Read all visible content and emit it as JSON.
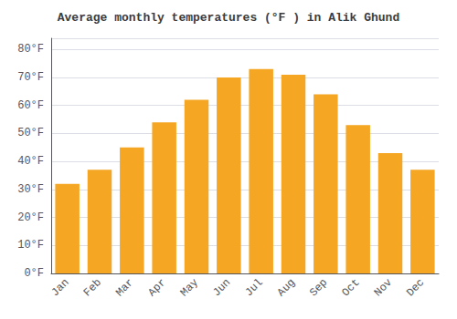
{
  "chart_data": {
    "type": "bar",
    "title": "Average monthly temperatures (°F ) in Alik Ghund",
    "categories": [
      "Jan",
      "Feb",
      "Mar",
      "Apr",
      "May",
      "Jun",
      "Jul",
      "Aug",
      "Sep",
      "Oct",
      "Nov",
      "Dec"
    ],
    "values": [
      32,
      37,
      45,
      54,
      62,
      70,
      73,
      71,
      64,
      53,
      43,
      37
    ],
    "color": "#F5A623",
    "ylim": [
      0,
      84
    ],
    "yticks": [
      {
        "value": 0,
        "label": "0°F"
      },
      {
        "value": 10,
        "label": "10°F"
      },
      {
        "value": 20,
        "label": "20°F"
      },
      {
        "value": 30,
        "label": "30°F"
      },
      {
        "value": 40,
        "label": "40°F"
      },
      {
        "value": 50,
        "label": "50°F"
      },
      {
        "value": 60,
        "label": "60°F"
      },
      {
        "value": 70,
        "label": "70°F"
      },
      {
        "value": 80,
        "label": "80°F"
      }
    ],
    "grid": true
  }
}
